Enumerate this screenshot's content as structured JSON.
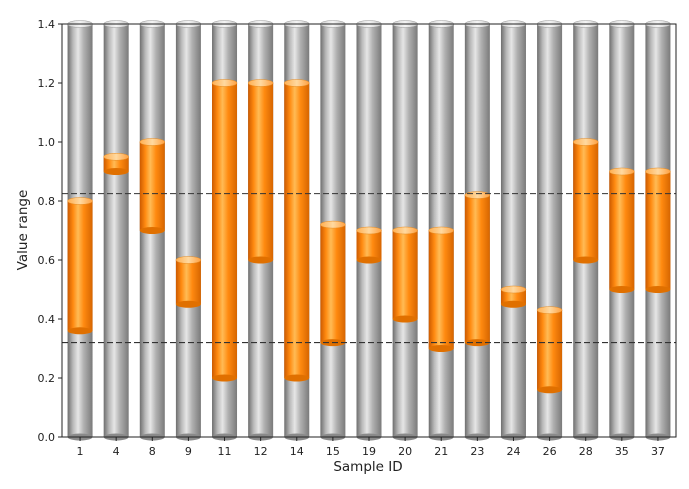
{
  "chart_data": {
    "type": "bar",
    "subtype": "floating-range-cylinder",
    "title": "",
    "xlabel": "Sample ID",
    "ylabel": "Value range",
    "ylim": [
      0,
      1.4
    ],
    "yticks": [
      "0.0",
      "0.2",
      "0.4",
      "0.6",
      "0.8",
      "1.0",
      "1.2",
      "1.4"
    ],
    "ytick_values": [
      0,
      0.2,
      0.4,
      0.6,
      0.8,
      1.0,
      1.2,
      1.4
    ],
    "grid": false,
    "background_cylinder_top": 1.4,
    "categories": [
      "1",
      "4",
      "8",
      "9",
      "11",
      "12",
      "14",
      "15",
      "19",
      "20",
      "21",
      "23",
      "24",
      "26",
      "28",
      "35",
      "37"
    ],
    "ranges": [
      [
        0.36,
        0.8
      ],
      [
        0.9,
        0.95
      ],
      [
        0.7,
        1.0
      ],
      [
        0.45,
        0.6
      ],
      [
        0.2,
        1.2
      ],
      [
        0.6,
        1.2
      ],
      [
        0.2,
        1.2
      ],
      [
        0.32,
        0.72
      ],
      [
        0.6,
        0.7
      ],
      [
        0.4,
        0.7
      ],
      [
        0.3,
        0.7
      ],
      [
        0.32,
        0.82
      ],
      [
        0.45,
        0.5
      ],
      [
        0.16,
        0.43
      ],
      [
        0.6,
        1.0
      ],
      [
        0.5,
        0.9
      ],
      [
        0.5,
        0.9
      ]
    ],
    "reference_lines": [
      0.825,
      0.32
    ],
    "colors": {
      "range": "#ff8800",
      "cylinder": "#a6a6a6",
      "reference_line": "#333333"
    }
  }
}
